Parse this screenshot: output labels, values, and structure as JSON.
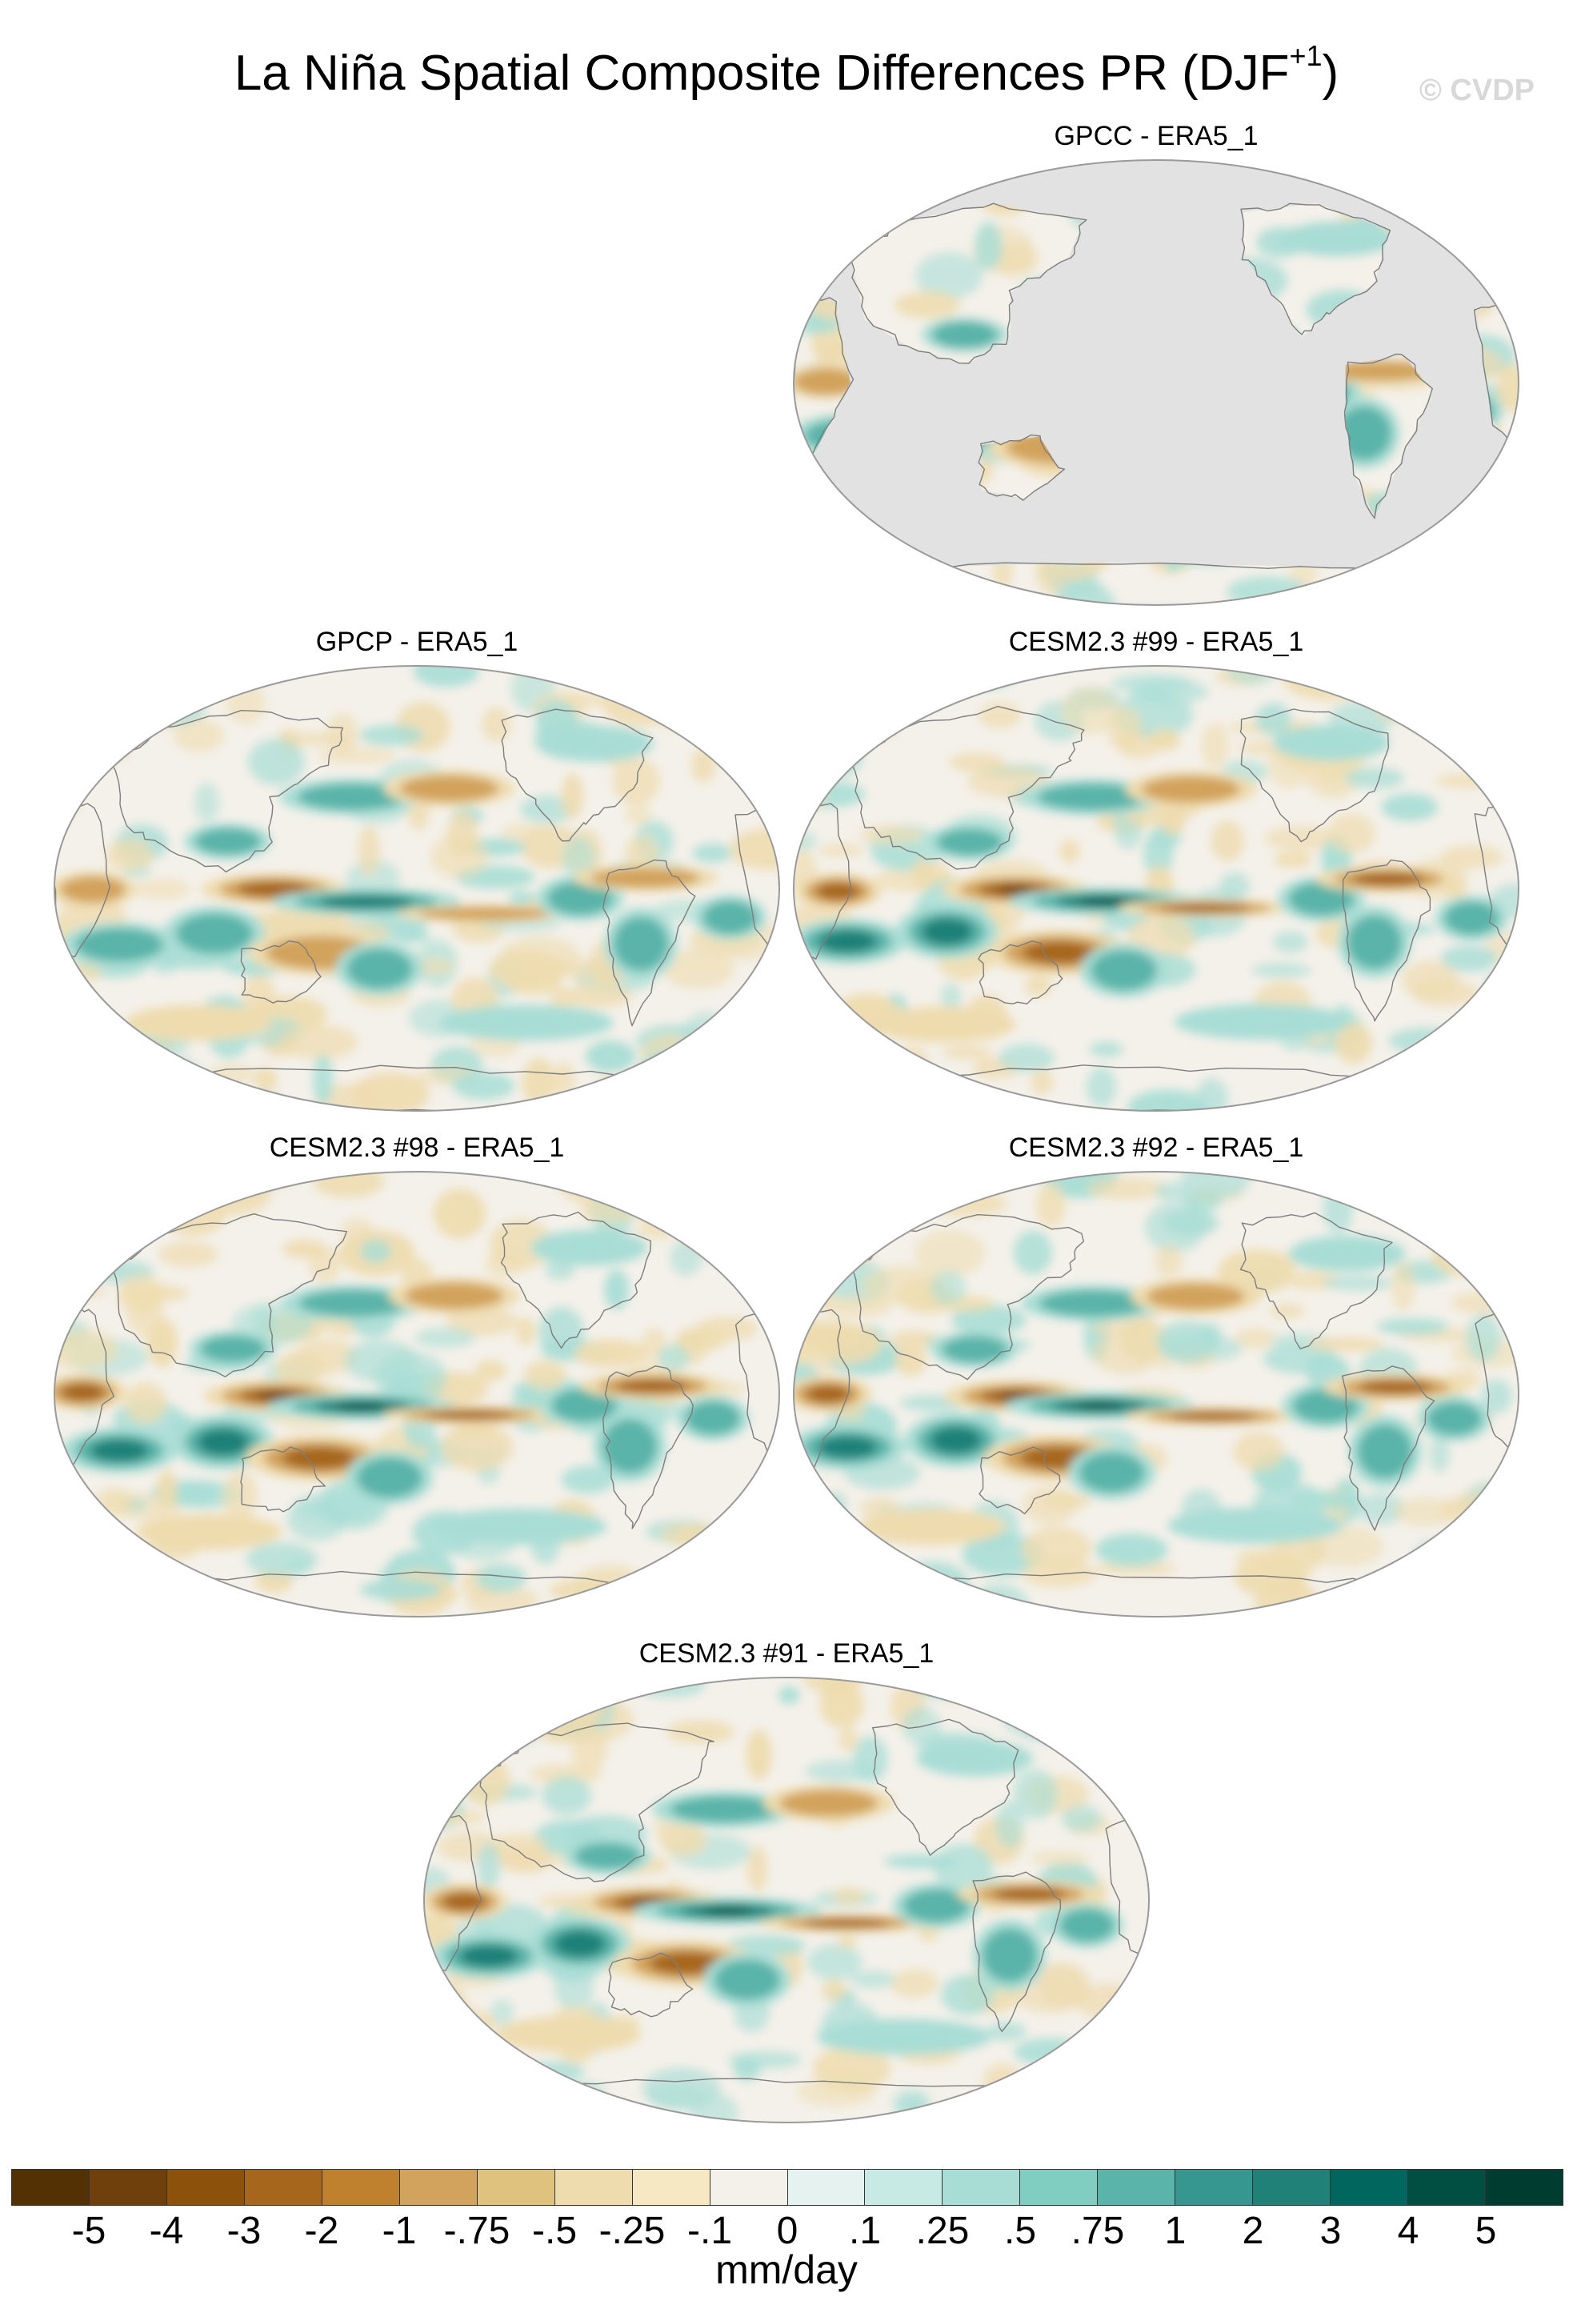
{
  "figure": {
    "title": "La Niña Spatial Composite Differences PR (DJF",
    "title_sup": "+1",
    "title_end": ")",
    "watermark": "© CVDP"
  },
  "panels": [
    {
      "title": "GPCC - ERA5_1",
      "land_only": true
    },
    {
      "title": "GPCP - ERA5_1",
      "land_only": false
    },
    {
      "title": "CESM2.3 #99 - ERA5_1",
      "land_only": false
    },
    {
      "title": "CESM2.3 #98 - ERA5_1",
      "land_only": false
    },
    {
      "title": "CESM2.3 #92 - ERA5_1",
      "land_only": false
    },
    {
      "title": "CESM2.3 #91 - ERA5_1",
      "land_only": false
    }
  ],
  "colorbar": {
    "labels": [
      "-5",
      "-4",
      "-3",
      "-2",
      "-1",
      "-.75",
      "-.5",
      "-.25",
      "-.1",
      "0",
      ".1",
      ".25",
      ".5",
      ".75",
      "1",
      "2",
      "3",
      "4",
      "5"
    ],
    "colors": [
      "#543005",
      "#6f3f0c",
      "#8c510a",
      "#a6661c",
      "#bf812d",
      "#d2a35c",
      "#dfc27d",
      "#eedbae",
      "#f6e8c3",
      "#f4f1ea",
      "#e6f2f0",
      "#c7eae5",
      "#a8ddd5",
      "#80cdc1",
      "#5ab4a9",
      "#35978f",
      "#1f8178",
      "#01665e",
      "#014e43",
      "#003c30"
    ],
    "units": "mm/day"
  },
  "map": {
    "ocean_missing_color": "#e2e2e2",
    "outline_color": "#9a9a9a"
  }
}
